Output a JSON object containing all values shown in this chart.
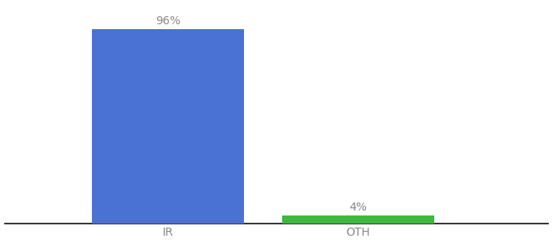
{
  "categories": [
    "IR",
    "OTH"
  ],
  "values": [
    96,
    4
  ],
  "bar_colors": [
    "#4a72d4",
    "#3dba3d"
  ],
  "label_texts": [
    "96%",
    "4%"
  ],
  "background_color": "#ffffff",
  "text_color": "#888888",
  "ylim": [
    0,
    108
  ],
  "bar_width": 0.28,
  "x_positions": [
    0.3,
    0.65
  ],
  "xlim": [
    0.0,
    1.0
  ],
  "label_fontsize": 10,
  "tick_fontsize": 10
}
